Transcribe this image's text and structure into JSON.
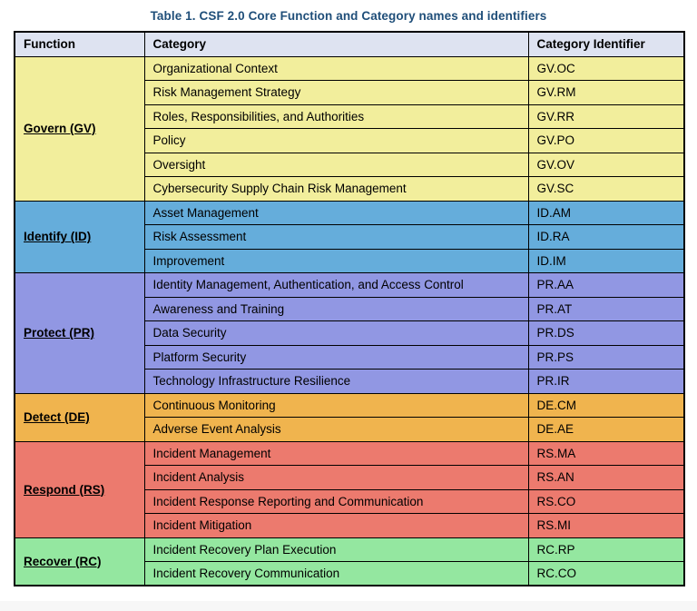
{
  "page": {
    "title": "Table 1. CSF 2.0 Core Function and Category names and identifiers",
    "title_color": "#1F4E79"
  },
  "table": {
    "columns": [
      "Function",
      "Category",
      "Category Identifier"
    ],
    "header_bg": "#DEE3F1",
    "border_color": "#000000",
    "groups": [
      {
        "function": "Govern (GV)",
        "color": "#F2EE9C",
        "rows": [
          {
            "category": "Organizational Context",
            "identifier": "GV.OC"
          },
          {
            "category": "Risk Management Strategy",
            "identifier": "GV.RM"
          },
          {
            "category": "Roles, Responsibilities, and Authorities",
            "identifier": "GV.RR"
          },
          {
            "category": "Policy",
            "identifier": "GV.PO"
          },
          {
            "category": "Oversight",
            "identifier": "GV.OV"
          },
          {
            "category": "Cybersecurity Supply Chain Risk Management",
            "identifier": "GV.SC"
          }
        ]
      },
      {
        "function": "Identify (ID)",
        "color": "#65ADDB",
        "rows": [
          {
            "category": "Asset Management",
            "identifier": "ID.AM"
          },
          {
            "category": "Risk Assessment",
            "identifier": "ID.RA"
          },
          {
            "category": "Improvement",
            "identifier": "ID.IM"
          }
        ]
      },
      {
        "function": "Protect (PR)",
        "color": "#9197E3",
        "rows": [
          {
            "category": "Identity Management, Authentication, and Access Control",
            "identifier": "PR.AA"
          },
          {
            "category": "Awareness and Training",
            "identifier": "PR.AT"
          },
          {
            "category": "Data Security",
            "identifier": "PR.DS"
          },
          {
            "category": "Platform Security",
            "identifier": "PR.PS"
          },
          {
            "category": "Technology Infrastructure Resilience",
            "identifier": "PR.IR"
          }
        ]
      },
      {
        "function": "Detect (DE)",
        "color": "#F0B44E",
        "rows": [
          {
            "category": "Continuous Monitoring",
            "identifier": "DE.CM"
          },
          {
            "category": "Adverse Event Analysis",
            "identifier": "DE.AE"
          }
        ]
      },
      {
        "function": "Respond (RS)",
        "color": "#EC7A6E",
        "rows": [
          {
            "category": "Incident Management",
            "identifier": "RS.MA"
          },
          {
            "category": "Incident Analysis",
            "identifier": "RS.AN"
          },
          {
            "category": "Incident Response Reporting and Communication",
            "identifier": "RS.CO"
          },
          {
            "category": "Incident Mitigation",
            "identifier": "RS.MI"
          }
        ]
      },
      {
        "function": "Recover (RC)",
        "color": "#94E7A0",
        "rows": [
          {
            "category": "Incident Recovery Plan Execution",
            "identifier": "RC.RP"
          },
          {
            "category": "Incident Recovery Communication",
            "identifier": "RC.CO"
          }
        ]
      }
    ]
  }
}
